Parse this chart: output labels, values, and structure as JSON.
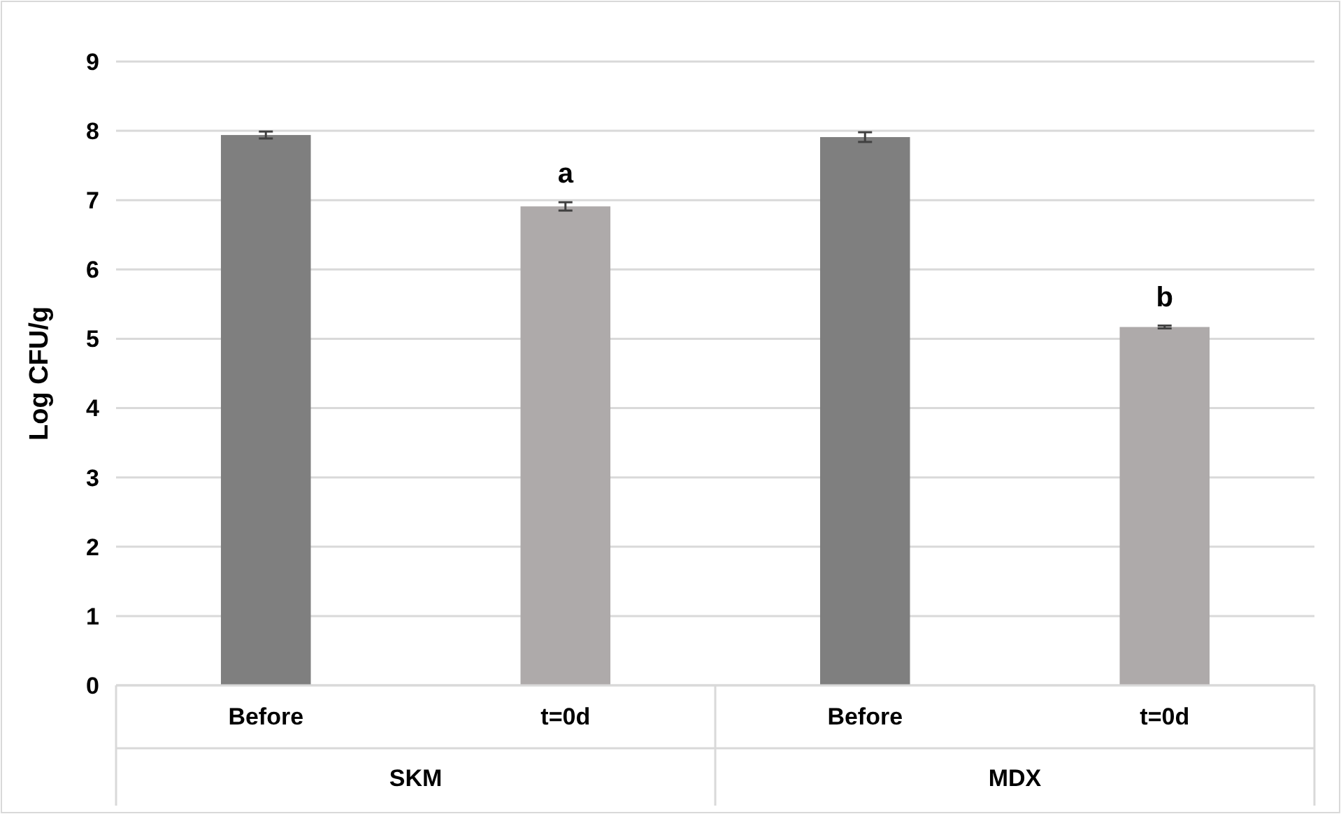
{
  "chart_data": {
    "type": "bar",
    "ylabel": "Log CFU/g",
    "categories": [
      "Before",
      "t=0d",
      "Before",
      "t=0d"
    ],
    "values": [
      7.94,
      6.91,
      7.91,
      5.17
    ],
    "errors": [
      0.05,
      0.06,
      0.07,
      0.02
    ],
    "value_labels": [
      null,
      "a",
      null,
      "b"
    ],
    "colors": [
      "#7f7f7f",
      "#aeaaaa",
      "#7f7f7f",
      "#aeaaaa"
    ],
    "ylim": [
      0,
      9
    ],
    "yticks": [
      0,
      1,
      2,
      3,
      4,
      5,
      6,
      7,
      8,
      9
    ],
    "grid": "y",
    "annotations": [
      "SKM",
      "MDX"
    ]
  }
}
